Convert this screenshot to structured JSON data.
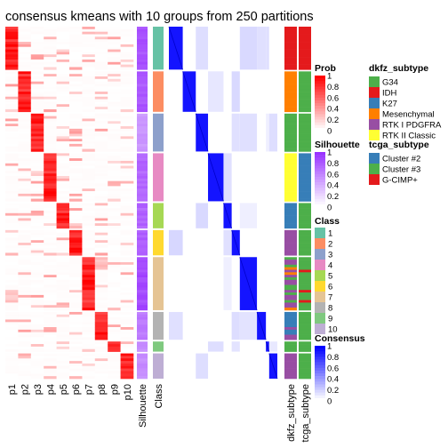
{
  "chart_data": {
    "type": "heatmap",
    "title": "consensus kmeans with 10 groups from 250 partitions",
    "columns": [
      "p1",
      "p2",
      "p3",
      "p4",
      "p5",
      "p6",
      "p7",
      "p8",
      "p9",
      "p10"
    ],
    "annotation_columns": [
      "Silhouette",
      "Class",
      "dkfz_subtype",
      "tcga_subtype"
    ],
    "class_counts": [
      17,
      16,
      15,
      19,
      10,
      10,
      21,
      11,
      4,
      10
    ],
    "silhouette": [
      0.92,
      0.88,
      0.55,
      0.8,
      0.82,
      0.85,
      0.95,
      0.7,
      0.6,
      0.6
    ],
    "dkfz_per_class": [
      [
        "IDH"
      ],
      [
        "Mesenchymal"
      ],
      [
        "G34"
      ],
      [
        "RTK II Classic"
      ],
      [
        "K27"
      ],
      [
        "RTK I PDGFRA"
      ],
      [
        "RTK I PDGFRA",
        "G34",
        "Mesenchymal"
      ],
      [
        "K27",
        "RTK I PDGFRA"
      ],
      [
        "G34"
      ],
      [
        "RTK I PDGFRA"
      ]
    ],
    "tcga_per_class": [
      [
        "G-CIMP+"
      ],
      [
        "Cluster #3"
      ],
      [
        "Cluster #3"
      ],
      [
        "Cluster #2"
      ],
      [
        "Cluster #3"
      ],
      [
        "Cluster #3"
      ],
      [
        "Cluster #3",
        "G-CIMP+"
      ],
      [
        "Cluster #3"
      ],
      [
        "Cluster #3"
      ],
      [
        "Cluster #3"
      ]
    ],
    "legends": {
      "prob": {
        "title": "Prob",
        "ticks": [
          "1",
          "0.8",
          "0.6",
          "0.4",
          "0.2",
          "0"
        ],
        "low": "#ffffff",
        "high": "#ff0000"
      },
      "silhouette": {
        "title": "Silhouette",
        "ticks": [
          "1",
          "0.8",
          "0.6",
          "0.4",
          "0.2",
          "0"
        ],
        "low": "#ffffff",
        "high": "#9933ff"
      },
      "class": {
        "title": "Class",
        "labels": [
          "1",
          "2",
          "3",
          "4",
          "5",
          "6",
          "7",
          "8",
          "9",
          "10"
        ],
        "colors": [
          "#66c2a5",
          "#fc8d62",
          "#8da0cb",
          "#e78ac3",
          "#a6d854",
          "#ffd92f",
          "#e5c494",
          "#b3b3b3",
          "#7fc97f",
          "#beaed4"
        ]
      },
      "consensus": {
        "title": "Consensus",
        "ticks": [
          "1",
          "0.8",
          "0.6",
          "0.4",
          "0.2",
          "0"
        ],
        "low": "#ffffff",
        "high": "#0000ff"
      },
      "dkfz_subtype": {
        "title": "dkfz_subtype",
        "labels": [
          "G34",
          "IDH",
          "K27",
          "Mesenchymal",
          "RTK I PDGFRA",
          "RTK II Classic"
        ],
        "colors": [
          "#4daf4a",
          "#e41a1c",
          "#377eb8",
          "#ff7f00",
          "#984ea3",
          "#ffff33"
        ]
      },
      "tcga_subtype": {
        "title": "tcga_subtype",
        "labels": [
          "Cluster #2",
          "Cluster #3",
          "G-CIMP+"
        ],
        "colors": [
          "#377eb8",
          "#4daf4a",
          "#e41a1c"
        ]
      }
    }
  }
}
